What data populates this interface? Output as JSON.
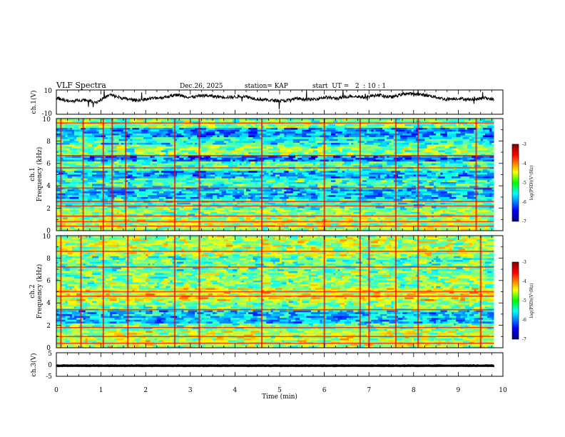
{
  "header": {
    "title": "VLF Spectra",
    "date": "Dec.26, 2025",
    "station": "station= KAP",
    "start": "start  UT =   2  : 10 : 1"
  },
  "chart_data": [
    {
      "type": "line",
      "name": "ch1-waveform",
      "ylabel": "ch.1(V)",
      "ylim": [
        -10,
        10
      ],
      "yticks": [
        "10",
        "-10"
      ],
      "xlim": [
        0,
        10
      ],
      "x_extent": [
        0,
        9.8
      ],
      "trend": [
        [
          0.0,
          3.5
        ],
        [
          0.3,
          0.5
        ],
        [
          0.6,
          2.0
        ],
        [
          0.9,
          0.0
        ],
        [
          1.2,
          6.0
        ],
        [
          1.5,
          3.0
        ],
        [
          1.8,
          1.5
        ],
        [
          2.1,
          3.0
        ],
        [
          2.4,
          4.0
        ],
        [
          2.7,
          6.0
        ],
        [
          3.0,
          4.0
        ],
        [
          3.3,
          5.5
        ],
        [
          3.6,
          4.5
        ],
        [
          3.9,
          4.0
        ],
        [
          4.2,
          5.0
        ],
        [
          4.5,
          2.5
        ],
        [
          4.8,
          1.5
        ],
        [
          5.1,
          1.0
        ],
        [
          5.4,
          3.0
        ],
        [
          5.7,
          2.0
        ],
        [
          6.0,
          4.0
        ],
        [
          6.3,
          3.0
        ],
        [
          6.6,
          5.0
        ],
        [
          6.9,
          4.0
        ],
        [
          7.2,
          6.0
        ],
        [
          7.5,
          4.0
        ],
        [
          7.8,
          7.0
        ],
        [
          8.1,
          6.5
        ],
        [
          8.4,
          5.0
        ],
        [
          8.7,
          2.5
        ],
        [
          9.0,
          3.0
        ],
        [
          9.3,
          2.0
        ],
        [
          9.6,
          3.5
        ],
        [
          9.8,
          2.0
        ]
      ]
    },
    {
      "type": "heatmap",
      "name": "ch1-spectrogram",
      "ylabel_line1": "ch.1",
      "ylabel_line2": "Frequency  (kHz)",
      "ylim": [
        0,
        10
      ],
      "yticks": [
        "0",
        "2",
        "4",
        "6",
        "8",
        "10"
      ],
      "xlim": [
        0,
        10
      ],
      "x_extent": [
        0,
        9.8
      ],
      "colorbar": {
        "label": "log(PSD)(V²/Hz)",
        "range": [
          -7,
          -3
        ],
        "ticks": [
          "-3",
          "-4",
          "-5",
          "-6",
          "-7"
        ]
      },
      "bands": [
        {
          "from": 0.0,
          "to": 1.2,
          "level": 0.55
        },
        {
          "from": 1.2,
          "to": 2.0,
          "level": 0.5
        },
        {
          "from": 2.0,
          "to": 2.8,
          "level": 0.42
        },
        {
          "from": 2.8,
          "to": 3.8,
          "level": 0.32
        },
        {
          "from": 3.8,
          "to": 4.6,
          "level": 0.42
        },
        {
          "from": 4.6,
          "to": 5.4,
          "level": 0.3
        },
        {
          "from": 5.4,
          "to": 6.2,
          "level": 0.45
        },
        {
          "from": 6.2,
          "to": 6.6,
          "level": 0.25
        },
        {
          "from": 6.6,
          "to": 7.6,
          "level": 0.5
        },
        {
          "from": 7.6,
          "to": 8.4,
          "level": 0.38
        },
        {
          "from": 8.4,
          "to": 9.2,
          "level": 0.28
        },
        {
          "from": 9.2,
          "to": 10.0,
          "level": 0.5
        }
      ],
      "lines_khz": [
        0.4,
        0.8,
        1.3,
        2.2,
        2.6,
        3.8,
        5.6,
        6.7,
        9.6
      ],
      "bursts_min": [
        0.1,
        0.6,
        1.05,
        1.25,
        1.55,
        2.65,
        3.2,
        4.6,
        6.0,
        6.8,
        7.6,
        8.1,
        9.4
      ]
    },
    {
      "type": "heatmap",
      "name": "ch2-spectrogram",
      "ylabel_line1": "ch.2",
      "ylabel_line2": "Frequency  (kHz)",
      "ylim": [
        0,
        10
      ],
      "yticks": [
        "0",
        "2",
        "4",
        "6",
        "8",
        "10"
      ],
      "xlim": [
        0,
        10
      ],
      "x_extent": [
        0,
        9.8
      ],
      "colorbar": {
        "label": "log(PSD)(V²/Hz)",
        "range": [
          -7,
          -3
        ],
        "ticks": [
          "-3",
          "-4",
          "-5",
          "-6",
          "-7"
        ]
      },
      "bands": [
        {
          "from": 0.0,
          "to": 1.5,
          "level": 0.55
        },
        {
          "from": 1.5,
          "to": 2.2,
          "level": 0.48
        },
        {
          "from": 2.2,
          "to": 3.4,
          "level": 0.32
        },
        {
          "from": 3.4,
          "to": 4.2,
          "level": 0.5
        },
        {
          "from": 4.2,
          "to": 5.4,
          "level": 0.6
        },
        {
          "from": 5.4,
          "to": 6.8,
          "level": 0.5
        },
        {
          "from": 6.8,
          "to": 8.2,
          "level": 0.46
        },
        {
          "from": 8.2,
          "to": 10.0,
          "level": 0.55
        }
      ],
      "lines_khz": [
        0.4,
        1.0,
        1.8,
        3.4,
        4.6,
        5.0,
        7.2,
        8.6
      ],
      "bursts_min": [
        0.1,
        0.55,
        1.05,
        1.6,
        2.65,
        3.2,
        4.6,
        6.0,
        6.8,
        7.0,
        7.6,
        8.1,
        9.5
      ]
    },
    {
      "type": "line",
      "name": "ch3-waveform",
      "ylabel": "ch.3(V)",
      "ylim": [
        -5,
        5
      ],
      "yticks": [
        "5",
        "0",
        "-5"
      ],
      "xlim": [
        0,
        10
      ],
      "x_extent": [
        0,
        9.8
      ],
      "trend": [
        [
          0.0,
          -0.5
        ],
        [
          9.8,
          -0.5
        ]
      ],
      "amplitude": 0.5
    }
  ],
  "x_axis": {
    "label": "Time  (min)",
    "ticks": [
      "0",
      "1",
      "2",
      "3",
      "4",
      "5",
      "6",
      "7",
      "8",
      "9",
      "10"
    ]
  }
}
